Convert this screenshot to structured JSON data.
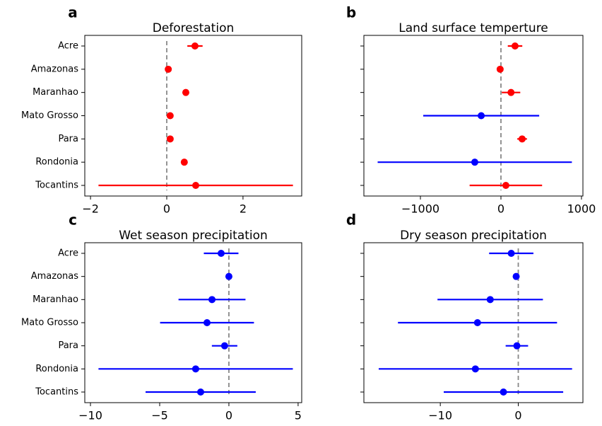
{
  "chart_data": [
    {
      "type": "errorbar",
      "panel_label": "a",
      "title": "Deforestation",
      "categories": [
        "Acre",
        "Amazonas",
        "Maranhao",
        "Mato Grosso",
        "Para",
        "Rondonia",
        "Tocantins"
      ],
      "values": [
        0.74,
        0.04,
        0.5,
        0.09,
        0.09,
        0.46,
        0.76
      ],
      "errors": [
        0.2,
        0.02,
        0.03,
        0.02,
        0.02,
        0.03,
        2.55
      ],
      "colors": [
        "#ff0000",
        "#ff0000",
        "#ff0000",
        "#ff0000",
        "#ff0000",
        "#ff0000",
        "#ff0000"
      ],
      "xlim": [
        -2.15,
        3.54
      ],
      "xticks": [
        {
          "value": -2,
          "label": "−2"
        },
        0,
        2
      ],
      "reference_line": 0
    },
    {
      "type": "errorbar",
      "panel_label": "b",
      "title": "Land surface temperture",
      "values": [
        175,
        -10,
        125,
        -245,
        263,
        -325,
        61
      ],
      "errors": [
        90,
        20,
        115,
        720,
        60,
        1206,
        450
      ],
      "colors": [
        "#ff0000",
        "#ff0000",
        "#ff0000",
        "#0000ff",
        "#ff0000",
        "#0000ff",
        "#ff0000"
      ],
      "xlim": [
        -1702,
        1018
      ],
      "xticks": [
        {
          "value": -1000,
          "label": "−1000"
        },
        0,
        1000
      ],
      "reference_line": 0
    },
    {
      "type": "errorbar",
      "panel_label": "c",
      "title": "Wet season precipitation",
      "categories": [
        "Acre",
        "Amazonas",
        "Maranhao",
        "Mato Grosso",
        "Para",
        "Rondonia",
        "Tocantins"
      ],
      "values": [
        -0.56,
        0,
        -1.22,
        -1.58,
        -0.31,
        -2.4,
        -2.04
      ],
      "errors": [
        1.25,
        0.1,
        2.42,
        3.39,
        0.92,
        7.02,
        3.98
      ],
      "colors": [
        "#0000ff",
        "#0000ff",
        "#0000ff",
        "#0000ff",
        "#0000ff",
        "#0000ff",
        "#0000ff"
      ],
      "xlim": [
        -10.41,
        5.26
      ],
      "xticks": [
        {
          "value": -10,
          "label": "−10"
        },
        {
          "value": -5,
          "label": "−5"
        },
        0,
        5
      ],
      "reference_line": 0
    },
    {
      "type": "errorbar",
      "panel_label": "d",
      "title": "Dry season precipitation",
      "values": [
        -0.9,
        -0.27,
        -3.6,
        -5.23,
        -0.18,
        -5.5,
        -1.9
      ],
      "errors": [
        2.84,
        0.1,
        6.76,
        10.2,
        1.44,
        12.4,
        7.66
      ],
      "colors": [
        "#0000ff",
        "#0000ff",
        "#0000ff",
        "#0000ff",
        "#0000ff",
        "#0000ff",
        "#0000ff"
      ],
      "xlim": [
        -19.8,
        8.29
      ],
      "xticks": [
        {
          "value": -10,
          "label": "−10"
        },
        0
      ],
      "reference_line": 0
    }
  ]
}
